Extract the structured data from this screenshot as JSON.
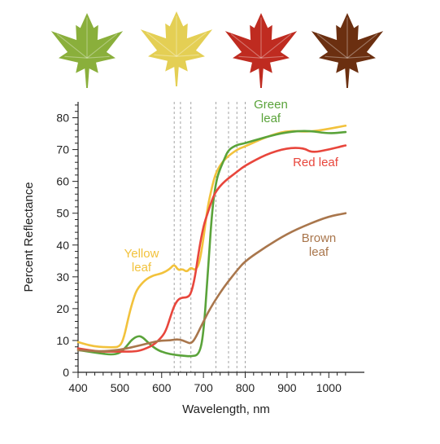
{
  "chart_data": {
    "type": "line",
    "xlabel": "Wavelength, nm",
    "ylabel": "Percent Reflectance",
    "xlim": [
      400,
      1050
    ],
    "ylim": [
      0,
      85
    ],
    "x_ticks": [
      400,
      500,
      600,
      700,
      800,
      900,
      1000
    ],
    "y_ticks": [
      0,
      10,
      20,
      30,
      40,
      50,
      60,
      70,
      80
    ],
    "grid": false,
    "reference_lines_x": [
      630,
      645,
      670,
      730,
      760,
      780,
      800
    ],
    "leaf_icons": [
      {
        "name": "green-leaf-icon",
        "color": "#8aaf3b"
      },
      {
        "name": "yellow-leaf-icon",
        "color": "#e4cf54"
      },
      {
        "name": "red-leaf-icon",
        "color": "#bf2b20"
      },
      {
        "name": "brown-leaf-icon",
        "color": "#6b2f10"
      }
    ],
    "series": [
      {
        "name": "Yellow leaf",
        "label_lines": [
          "Yellow",
          "leaf"
        ],
        "color": "#f2c23c",
        "x": [
          400,
          425,
          450,
          480,
          500,
          510,
          520,
          530,
          540,
          560,
          580,
          600,
          620,
          630,
          640,
          650,
          660,
          670,
          680,
          690,
          700,
          710,
          720,
          730,
          750,
          780,
          800,
          850,
          900,
          950,
          1000,
          1040
        ],
        "y": [
          9.5,
          8.5,
          8,
          7.8,
          8,
          11,
          17,
          22,
          26,
          29,
          30.5,
          31,
          32.5,
          34,
          32,
          32.5,
          31.5,
          33,
          32,
          34,
          42,
          52,
          58,
          63,
          67,
          70,
          71,
          74,
          76,
          75.5,
          76.5,
          77.5
        ]
      },
      {
        "name": "Green leaf",
        "label_lines": [
          "Green",
          "leaf"
        ],
        "color": "#5aa33a",
        "x": [
          400,
          425,
          450,
          480,
          500,
          515,
          530,
          545,
          555,
          570,
          590,
          610,
          630,
          650,
          670,
          690,
          700,
          710,
          720,
          730,
          740,
          750,
          760,
          780,
          800,
          850,
          900,
          950,
          1000,
          1040
        ],
        "y": [
          7,
          6.5,
          6,
          5.5,
          6,
          8,
          10.5,
          11.5,
          11,
          9,
          7,
          6,
          5.5,
          5.2,
          5,
          5.5,
          12,
          30,
          50,
          60,
          64,
          67,
          70,
          71.5,
          72,
          74,
          75.5,
          76,
          75,
          75.5
        ]
      },
      {
        "name": "Red leaf",
        "label_lines": [
          "Red leaf"
        ],
        "color": "#e8463c",
        "x": [
          400,
          425,
          450,
          480,
          500,
          530,
          550,
          580,
          600,
          610,
          620,
          630,
          640,
          650,
          660,
          670,
          680,
          690,
          700,
          710,
          720,
          730,
          750,
          780,
          800,
          850,
          900,
          940,
          960,
          1000,
          1040
        ],
        "y": [
          7.5,
          7,
          6.5,
          6.5,
          6.5,
          6.5,
          6.8,
          8.5,
          11,
          13,
          17,
          21,
          23,
          23.5,
          23.5,
          24.5,
          30,
          39,
          46,
          50,
          54,
          57,
          60,
          63,
          65,
          68.5,
          70.5,
          70.5,
          69,
          70,
          71.3
        ]
      },
      {
        "name": "Brown leaf",
        "label_lines": [
          "Brown",
          "leaf"
        ],
        "color": "#a9764c",
        "x": [
          400,
          450,
          500,
          550,
          580,
          600,
          620,
          640,
          660,
          670,
          680,
          700,
          720,
          750,
          780,
          800,
          850,
          900,
          950,
          1000,
          1040
        ],
        "y": [
          7,
          6.5,
          7,
          8.5,
          9.5,
          10,
          10,
          10.5,
          9.5,
          9,
          10.5,
          16,
          21,
          27,
          32,
          35,
          39.5,
          43.5,
          46.5,
          49,
          50
        ]
      }
    ]
  }
}
